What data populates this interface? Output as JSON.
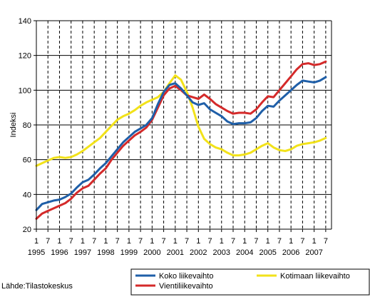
{
  "chart_data": {
    "type": "line",
    "ylabel": "Indeksi",
    "ylim": [
      20,
      140
    ],
    "y_ticks": [
      20,
      40,
      60,
      80,
      100,
      120,
      140
    ],
    "grid": {
      "horizontal": true,
      "vertical": "dashed at year starts and mid-years"
    },
    "x_start": 1995.0,
    "x_end": 2007.75,
    "x_tick_month_labels": [
      "1",
      "7",
      "1",
      "7",
      "1",
      "7",
      "1",
      "7",
      "1",
      "7",
      "1",
      "7",
      "1",
      "7",
      "1",
      "7",
      "1",
      "7",
      "1",
      "7",
      "1",
      "7",
      "1",
      "7",
      "1",
      "7"
    ],
    "x_tick_year_labels": [
      "1995",
      "1996",
      "1997",
      "1998",
      "1999",
      "2000",
      "2001",
      "2002",
      "2003",
      "2004",
      "2005",
      "2006",
      "2007"
    ],
    "legend_position": "bottom-right",
    "source": "Lähde:Tilastokeskus",
    "series": [
      {
        "name": "Koko liikevaihto",
        "color": "#1f5fa8",
        "points": [
          [
            1995.0,
            31
          ],
          [
            1995.25,
            34.5
          ],
          [
            1995.5,
            35.5
          ],
          [
            1995.75,
            36.5
          ],
          [
            1996.0,
            37
          ],
          [
            1996.25,
            38.5
          ],
          [
            1996.5,
            40.5
          ],
          [
            1996.75,
            44
          ],
          [
            1997.0,
            47
          ],
          [
            1997.25,
            48.5
          ],
          [
            1997.5,
            51.5
          ],
          [
            1997.75,
            55
          ],
          [
            1998.0,
            58
          ],
          [
            1998.25,
            62
          ],
          [
            1998.5,
            66
          ],
          [
            1998.75,
            70
          ],
          [
            1999.0,
            73
          ],
          [
            1999.25,
            76
          ],
          [
            1999.5,
            78
          ],
          [
            1999.75,
            80
          ],
          [
            2000.0,
            84
          ],
          [
            2000.25,
            92
          ],
          [
            2000.5,
            99
          ],
          [
            2000.75,
            103
          ],
          [
            2001.0,
            104
          ],
          [
            2001.25,
            101
          ],
          [
            2001.5,
            97
          ],
          [
            2001.75,
            93
          ],
          [
            2002.0,
            91.5
          ],
          [
            2002.25,
            92.5
          ],
          [
            2002.5,
            89
          ],
          [
            2002.75,
            87
          ],
          [
            2003.0,
            85
          ],
          [
            2003.25,
            82
          ],
          [
            2003.5,
            80.5
          ],
          [
            2003.75,
            81
          ],
          [
            2004.0,
            81
          ],
          [
            2004.25,
            81.5
          ],
          [
            2004.5,
            84
          ],
          [
            2004.75,
            88
          ],
          [
            2005.0,
            91
          ],
          [
            2005.25,
            90.5
          ],
          [
            2005.5,
            94
          ],
          [
            2005.75,
            97
          ],
          [
            2006.0,
            100
          ],
          [
            2006.25,
            103
          ],
          [
            2006.5,
            105.5
          ],
          [
            2006.75,
            105
          ],
          [
            2007.0,
            104.5
          ],
          [
            2007.25,
            105.5
          ],
          [
            2007.5,
            107.5
          ]
        ]
      },
      {
        "name": "Vientiliikevaihto",
        "color": "#d42a2a",
        "points": [
          [
            1995.0,
            26
          ],
          [
            1995.25,
            29
          ],
          [
            1995.5,
            30.5
          ],
          [
            1995.75,
            32
          ],
          [
            1996.0,
            33.5
          ],
          [
            1996.25,
            35
          ],
          [
            1996.5,
            37.5
          ],
          [
            1996.75,
            41
          ],
          [
            1997.0,
            43.5
          ],
          [
            1997.25,
            45
          ],
          [
            1997.5,
            48.5
          ],
          [
            1997.75,
            52
          ],
          [
            1998.0,
            55
          ],
          [
            1998.25,
            60
          ],
          [
            1998.5,
            64
          ],
          [
            1998.75,
            68
          ],
          [
            1999.0,
            71
          ],
          [
            1999.25,
            74
          ],
          [
            1999.5,
            76
          ],
          [
            1999.75,
            78.5
          ],
          [
            2000.0,
            83
          ],
          [
            2000.25,
            90
          ],
          [
            2000.5,
            97
          ],
          [
            2000.75,
            101
          ],
          [
            2001.0,
            102.5
          ],
          [
            2001.25,
            100
          ],
          [
            2001.5,
            97
          ],
          [
            2001.75,
            96
          ],
          [
            2002.0,
            95
          ],
          [
            2002.25,
            97.5
          ],
          [
            2002.5,
            95
          ],
          [
            2002.75,
            92
          ],
          [
            2003.0,
            90
          ],
          [
            2003.25,
            88
          ],
          [
            2003.5,
            86.5
          ],
          [
            2003.75,
            87
          ],
          [
            2004.0,
            87
          ],
          [
            2004.25,
            86.5
          ],
          [
            2004.5,
            89
          ],
          [
            2004.75,
            93
          ],
          [
            2005.0,
            96.5
          ],
          [
            2005.25,
            96
          ],
          [
            2005.5,
            100
          ],
          [
            2005.75,
            104
          ],
          [
            2006.0,
            108
          ],
          [
            2006.25,
            112
          ],
          [
            2006.5,
            115
          ],
          [
            2006.75,
            115.5
          ],
          [
            2007.0,
            114.5
          ],
          [
            2007.25,
            115
          ],
          [
            2007.5,
            116.5
          ]
        ]
      },
      {
        "name": "Kotimaan liikevaihto",
        "color": "#f2e21a",
        "points": [
          [
            1995.0,
            56.5
          ],
          [
            1995.25,
            58
          ],
          [
            1995.5,
            59.5
          ],
          [
            1995.75,
            61
          ],
          [
            1996.0,
            61.5
          ],
          [
            1996.25,
            61
          ],
          [
            1996.5,
            61.5
          ],
          [
            1996.75,
            63
          ],
          [
            1997.0,
            65
          ],
          [
            1997.25,
            67.5
          ],
          [
            1997.5,
            70
          ],
          [
            1997.75,
            72.5
          ],
          [
            1998.0,
            76
          ],
          [
            1998.25,
            79.5
          ],
          [
            1998.5,
            83
          ],
          [
            1998.75,
            85
          ],
          [
            1999.0,
            86.5
          ],
          [
            1999.25,
            88.5
          ],
          [
            1999.5,
            91
          ],
          [
            1999.75,
            93
          ],
          [
            2000.0,
            94.5
          ],
          [
            2000.25,
            96
          ],
          [
            2000.5,
            99
          ],
          [
            2000.75,
            104
          ],
          [
            2001.0,
            108.5
          ],
          [
            2001.25,
            106
          ],
          [
            2001.5,
            99
          ],
          [
            2001.75,
            90
          ],
          [
            2002.0,
            79
          ],
          [
            2002.25,
            72
          ],
          [
            2002.5,
            69
          ],
          [
            2002.75,
            67
          ],
          [
            2003.0,
            66
          ],
          [
            2003.25,
            64
          ],
          [
            2003.5,
            62.5
          ],
          [
            2003.75,
            62.5
          ],
          [
            2004.0,
            63
          ],
          [
            2004.25,
            64
          ],
          [
            2004.5,
            66
          ],
          [
            2004.75,
            68
          ],
          [
            2005.0,
            69.5
          ],
          [
            2005.25,
            67
          ],
          [
            2005.5,
            65.5
          ],
          [
            2005.75,
            65
          ],
          [
            2006.0,
            66
          ],
          [
            2006.25,
            68
          ],
          [
            2006.5,
            69
          ],
          [
            2006.75,
            69.5
          ],
          [
            2007.0,
            70
          ],
          [
            2007.25,
            71
          ],
          [
            2007.5,
            72.5
          ]
        ]
      }
    ]
  }
}
